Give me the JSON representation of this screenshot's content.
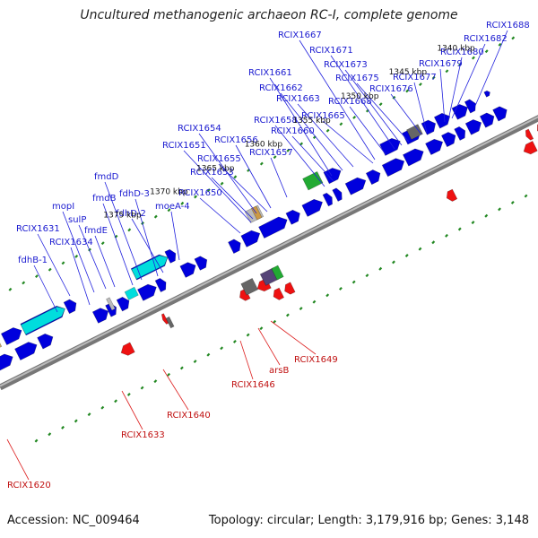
{
  "title": "Uncultured methanogenic archaeon RC-I, complete genome",
  "footer": {
    "accession": "Accession: NC_009464",
    "topology": "Topology: circular; Length: 3,179,916 bp; Genes: 3,148"
  },
  "colors": {
    "forward_gene": "#0000dd",
    "reverse_gene": "#ee1111",
    "cyan_gene": "#00dddd",
    "green_gene": "#22aa33",
    "gray_gene": "#666666",
    "backbone": "#888888",
    "tick": "#228822",
    "label_blue": "#1a1ad0",
    "label_red": "#c01010"
  },
  "kbp_labels": [
    "1340 kbp",
    "1345 kbp",
    "1350 kbp",
    "1355 kbp",
    "1360 kbp",
    "1365 kbp",
    "1370 kbp",
    "1375 kbp"
  ],
  "forward_labels": [
    "fdhB-1",
    "RCIX1631",
    "RCIX1634",
    "mopI",
    "sulP",
    "fmdE",
    "fmdB",
    "fmdD",
    "fdhD-3",
    "fdhD-2",
    "moeA-4",
    "RCIX1650",
    "RCIX1651",
    "RCIX1653",
    "RCIX1654",
    "RCIX1655",
    "RCIX1656",
    "RCIX1657",
    "RCIX1658",
    "RCIX1660",
    "RCIX1661",
    "RCIX1662",
    "RCIX1663",
    "RCIX1665",
    "RCIX1667",
    "RCIX1668",
    "RCIX1671",
    "RCIX1673",
    "RCIX1675",
    "RCIX1676",
    "RCIX1677",
    "RCIX1679",
    "RCIX1680",
    "RCIX1682",
    "RCIX1688"
  ],
  "reverse_labels": [
    "RCIX1620",
    "RCIX1633",
    "RCIX1640",
    "RCIX1646",
    "arsB",
    "RCIX1649"
  ]
}
